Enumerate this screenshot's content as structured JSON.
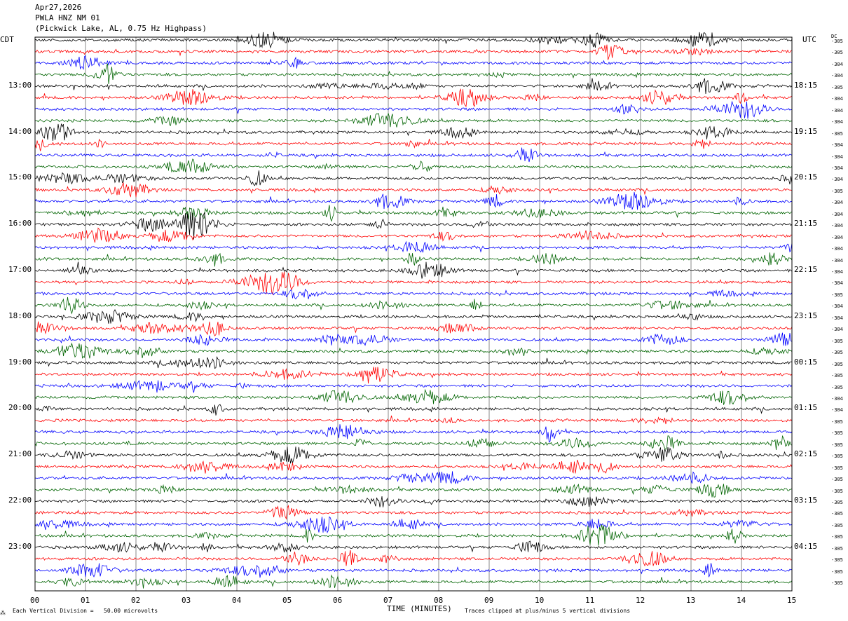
{
  "header": {
    "date": "Apr27,2026",
    "station": "PWLA HNZ NM 01",
    "location": "(Pickwick Lake, AL, 0.75 Hz Highpass)"
  },
  "labels": {
    "left_zone": "CDT",
    "right_zone": "UTC",
    "dc": "DC",
    "mark": "⁂"
  },
  "footer": {
    "scale": "Each Vertical Division =   50.00 microvolts",
    "clip": "Traces clipped at plus/minus 5 vertical divisions"
  },
  "chart_data": {
    "type": "line",
    "xlabel": "TIME (MINUTES)",
    "x_ticks": [
      "00",
      "01",
      "02",
      "03",
      "04",
      "05",
      "06",
      "07",
      "08",
      "09",
      "10",
      "11",
      "12",
      "13",
      "14",
      "15"
    ],
    "xlim": [
      0,
      15
    ],
    "grid": true,
    "trace_colors": [
      "#000000",
      "#ff0000",
      "#0000ff",
      "#006400"
    ],
    "left_hour_labels": [
      "13:00",
      "14:00",
      "15:00",
      "16:00",
      "17:00",
      "18:00",
      "19:00",
      "20:00",
      "21:00",
      "22:00",
      "23:00"
    ],
    "right_hour_labels": [
      "18:15",
      "19:15",
      "20:15",
      "21:15",
      "22:15",
      "23:15",
      "00:15",
      "01:15",
      "02:15",
      "03:15",
      "04:15"
    ],
    "dc_offsets": [
      "-305",
      "-305",
      "-304",
      "-304",
      "-305",
      "-304",
      "-304",
      "-304",
      "-305",
      "-304",
      "-304",
      "-304",
      "-304",
      "-305",
      "-304",
      "-304",
      "-304",
      "-304",
      "-304",
      "-304",
      "-304",
      "-304",
      "-305",
      "-304",
      "-304",
      "-304",
      "-305",
      "-305",
      "-305",
      "-305",
      "-305",
      "-304",
      "-304",
      "-305",
      "-305",
      "-305",
      "-305",
      "-305",
      "-305",
      "-305",
      "-305",
      "-305",
      "-305",
      "-305",
      "-305",
      "-305",
      "-305",
      "-305",
      "-305",
      "-305",
      "-305",
      "-305"
    ]
  }
}
